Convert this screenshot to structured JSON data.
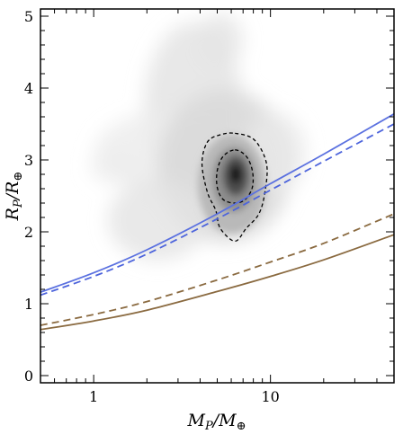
{
  "chart_data": {
    "type": "line",
    "xlabel": "M_P / M_⊕",
    "ylabel": "R_P / R_⊕",
    "xscale": "log",
    "xlim": [
      0.5,
      50
    ],
    "ylim": [
      -0.1,
      5.1
    ],
    "xticks": [
      1,
      10
    ],
    "xtick_labels": [
      "1",
      "10"
    ],
    "yticks": [
      0,
      1,
      2,
      3,
      4,
      5
    ],
    "ytick_labels": [
      "0",
      "1",
      "2",
      "3",
      "4",
      "5"
    ],
    "grid": false,
    "legend": "none",
    "series": [
      {
        "style": "solid",
        "color": "#5b71e0",
        "x": [
          0.5,
          1,
          2,
          5,
          10,
          20,
          50
        ],
        "y": [
          1.16,
          1.43,
          1.75,
          2.25,
          2.67,
          3.08,
          3.64
        ]
      },
      {
        "style": "dashed",
        "color": "#4d64dc",
        "x": [
          0.5,
          1,
          2,
          5,
          10,
          20,
          50
        ],
        "y": [
          1.12,
          1.38,
          1.69,
          2.18,
          2.58,
          2.98,
          3.5
        ]
      },
      {
        "style": "dashed",
        "color": "#8a6a40",
        "x": [
          0.5,
          1,
          2,
          5,
          10,
          20,
          50
        ],
        "y": [
          0.7,
          0.85,
          1.03,
          1.33,
          1.58,
          1.84,
          2.25
        ]
      },
      {
        "style": "solid",
        "color": "#8a6a40",
        "x": [
          0.5,
          1,
          2,
          5,
          10,
          20,
          50
        ],
        "y": [
          0.64,
          0.76,
          0.91,
          1.17,
          1.38,
          1.61,
          1.96
        ]
      }
    ],
    "density": {
      "colormap": "white-to-black",
      "peak": {
        "x": 6.3,
        "y": 2.78
      },
      "contours": [
        {
          "style": "dashed",
          "color": "#000000",
          "x": [
            6.3,
            8.1,
            9.5,
            9.3,
            8.6,
            7.3,
            6.3,
            5.2,
            4.9,
            4.4,
            4.1,
            4.4,
            5.2,
            6.3
          ],
          "y": [
            3.37,
            3.28,
            2.95,
            2.55,
            2.25,
            2.05,
            1.87,
            2.05,
            2.3,
            2.55,
            2.95,
            3.25,
            3.35,
            3.37
          ]
        },
        {
          "style": "dashed",
          "color": "#000000",
          "x": [
            6.3,
            7.3,
            7.9,
            7.9,
            7.2,
            6.3,
            5.4,
            5.0,
            5.0,
            5.4,
            6.3
          ],
          "y": [
            3.14,
            3.05,
            2.85,
            2.62,
            2.45,
            2.4,
            2.45,
            2.62,
            2.85,
            3.05,
            3.14
          ]
        }
      ]
    }
  }
}
